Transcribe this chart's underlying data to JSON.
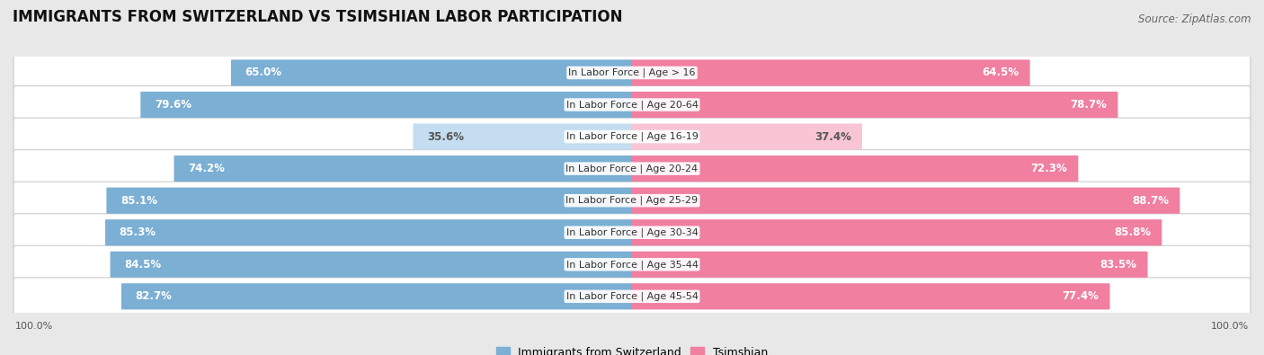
{
  "title": "IMMIGRANTS FROM SWITZERLAND VS TSIMSHIAN LABOR PARTICIPATION",
  "source": "Source: ZipAtlas.com",
  "categories": [
    "In Labor Force | Age > 16",
    "In Labor Force | Age 20-64",
    "In Labor Force | Age 16-19",
    "In Labor Force | Age 20-24",
    "In Labor Force | Age 25-29",
    "In Labor Force | Age 30-34",
    "In Labor Force | Age 35-44",
    "In Labor Force | Age 45-54"
  ],
  "switzerland_values": [
    65.0,
    79.6,
    35.6,
    74.2,
    85.1,
    85.3,
    84.5,
    82.7
  ],
  "tsimshian_values": [
    64.5,
    78.7,
    37.4,
    72.3,
    88.7,
    85.8,
    83.5,
    77.4
  ],
  "switzerland_color": "#7bafd4",
  "tsimshian_color": "#f07fa0",
  "switzerland_light_color": "#c5ddf0",
  "tsimshian_light_color": "#f9c5d5",
  "bg_color": "#e8e8e8",
  "row_bg_color": "#ffffff",
  "label_color_white": "#ffffff",
  "label_color_dark": "#555555",
  "max_value": 100.0,
  "legend_switzerland": "Immigrants from Switzerland",
  "legend_tsimshian": "Tsimshian",
  "title_fontsize": 12,
  "source_fontsize": 8.5,
  "bar_label_fontsize": 8.5,
  "category_label_fontsize": 8,
  "legend_fontsize": 9,
  "axis_label_fontsize": 8
}
